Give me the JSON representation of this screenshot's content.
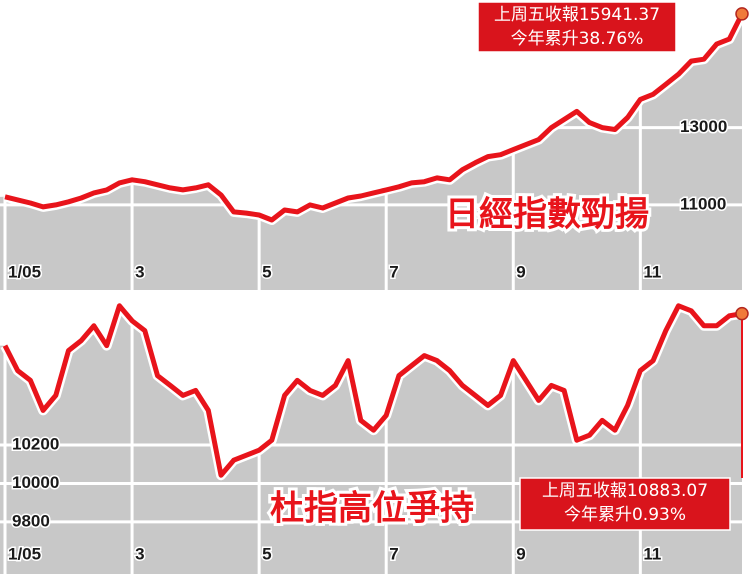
{
  "chart_data": [
    {
      "type": "line",
      "title": "日經指數勁揚",
      "annotations": [
        "上周五收報15941.37",
        "今年累升38.76%"
      ],
      "categories": [
        "1/05",
        null,
        null,
        null,
        null,
        null,
        null,
        null,
        null,
        null,
        "3",
        null,
        null,
        null,
        null,
        null,
        null,
        null,
        null,
        null,
        "5",
        null,
        null,
        null,
        null,
        null,
        null,
        null,
        null,
        null,
        "7",
        null,
        null,
        null,
        null,
        null,
        null,
        null,
        null,
        null,
        "9",
        null,
        null,
        null,
        null,
        null,
        null,
        null,
        null,
        null,
        "11",
        null,
        null,
        null,
        null,
        null,
        null,
        null,
        null
      ],
      "series": [
        {
          "color": "#e8141b",
          "values": [
            11210,
            11130,
            11050,
            10950,
            11000,
            11080,
            11180,
            11310,
            11390,
            11570,
            11650,
            11600,
            11520,
            11440,
            11390,
            11440,
            11520,
            11260,
            10820,
            10790,
            10740,
            10610,
            10870,
            10820,
            11000,
            10920,
            11050,
            11180,
            11230,
            11310,
            11390,
            11470,
            11570,
            11600,
            11700,
            11650,
            11910,
            12090,
            12250,
            12300,
            12430,
            12560,
            12690,
            13000,
            13210,
            13420,
            13130,
            13000,
            12950,
            13260,
            13730,
            13860,
            14120,
            14380,
            14720,
            14770,
            15160,
            15290,
            15941.37
          ]
        }
      ],
      "ylim": [
        8800,
        16300
      ],
      "yticks": [
        11000,
        13000
      ],
      "grid": true,
      "fill_color": "#c8c8c8"
    },
    {
      "type": "line",
      "title": "杜指高位爭持",
      "annotations": [
        "上周五收報10883.07",
        "今年累升0.93%"
      ],
      "categories": [
        "1/05",
        null,
        null,
        null,
        null,
        null,
        null,
        null,
        null,
        null,
        "3",
        null,
        null,
        null,
        null,
        null,
        null,
        null,
        null,
        null,
        "5",
        null,
        null,
        null,
        null,
        null,
        null,
        null,
        null,
        null,
        "7",
        null,
        null,
        null,
        null,
        null,
        null,
        null,
        null,
        null,
        "9",
        null,
        null,
        null,
        null,
        null,
        null,
        null,
        null,
        null,
        "11",
        null,
        null,
        null,
        null,
        null,
        null,
        null,
        null
      ],
      "series": [
        {
          "color": "#e8141b",
          "values": [
            10717,
            10587,
            10536,
            10380,
            10458,
            10691,
            10743,
            10820,
            10717,
            10924,
            10846,
            10795,
            10561,
            10510,
            10458,
            10484,
            10380,
            10043,
            10121,
            10147,
            10173,
            10225,
            10458,
            10536,
            10484,
            10458,
            10510,
            10639,
            10328,
            10277,
            10354,
            10561,
            10613,
            10665,
            10639,
            10587,
            10510,
            10458,
            10406,
            10458,
            10639,
            10536,
            10432,
            10510,
            10484,
            10225,
            10251,
            10328,
            10277,
            10406,
            10587,
            10639,
            10795,
            10924,
            10898,
            10820,
            10820,
            10872,
            10883.07
          ]
        }
      ],
      "ylim": [
        9680,
        10980
      ],
      "yticks": [
        9800,
        10000,
        10200
      ],
      "grid": true,
      "fill_color": "#c8c8c8"
    }
  ]
}
